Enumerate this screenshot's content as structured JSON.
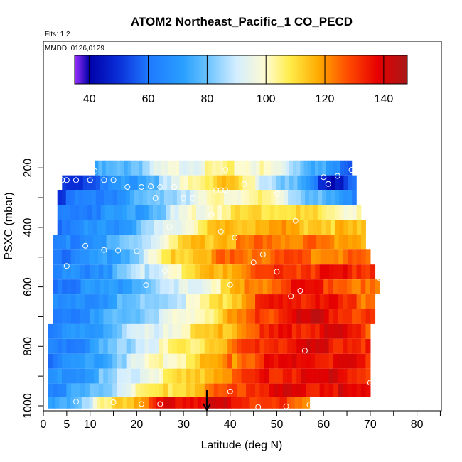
{
  "chart_data": {
    "type": "heatmap",
    "title": "ATOM2 Northeast_Pacific_1 CO_PECD",
    "flights_text": "Flts: 1,2",
    "dates_text": "MMDD: 0126,0129",
    "xlabel": "Latitude (deg N)",
    "ylabel": "PSXC (mbar)",
    "xlim": [
      0,
      86
    ],
    "ylim": [
      1000,
      0
    ],
    "x_ticks": [
      0,
      5,
      10,
      20,
      30,
      40,
      50,
      60,
      70,
      80
    ],
    "x_minor_ticks": [
      15,
      25,
      35,
      45,
      55,
      65,
      75,
      85
    ],
    "y_ticks": [
      200,
      400,
      600,
      800,
      1000
    ],
    "y_minor_ticks": [
      300,
      500,
      700,
      900
    ],
    "colorbar": {
      "range": [
        35,
        148
      ],
      "ticks": [
        40,
        60,
        80,
        100,
        120,
        140
      ],
      "colors": [
        {
          "v": 35,
          "c": "#9b30ff"
        },
        {
          "v": 40,
          "c": "#0000a8"
        },
        {
          "v": 50,
          "c": "#0a2fd9"
        },
        {
          "v": 60,
          "c": "#1e78ff"
        },
        {
          "v": 72,
          "c": "#2aa0ff"
        },
        {
          "v": 80,
          "c": "#69c2ff"
        },
        {
          "v": 90,
          "c": "#d4eeff"
        },
        {
          "v": 100,
          "c": "#fffbd0"
        },
        {
          "v": 108,
          "c": "#ffec4a"
        },
        {
          "v": 118,
          "c": "#ffaa00"
        },
        {
          "v": 128,
          "c": "#ff4a00"
        },
        {
          "v": 138,
          "c": "#e60000"
        },
        {
          "v": 148,
          "c": "#a81818"
        }
      ]
    },
    "layers": [
      {
        "p": 200,
        "lat": [
          11,
          66
        ],
        "vals": [
          72,
          76,
          84,
          93,
          97,
          100,
          102,
          100,
          94,
          82,
          70,
          58
        ]
      },
      {
        "p": 250,
        "lat": [
          4,
          67
        ],
        "vals": [
          50,
          55,
          66,
          74,
          86,
          106,
          116,
          100,
          86,
          72,
          44,
          58
        ]
      },
      {
        "p": 300,
        "lat": [
          3,
          67
        ],
        "vals": [
          55,
          60,
          66,
          74,
          85,
          94,
          100,
          104,
          98,
          84,
          72,
          62
        ]
      },
      {
        "p": 350,
        "lat": [
          3,
          68
        ],
        "vals": [
          60,
          64,
          68,
          74,
          86,
          98,
          106,
          110,
          112,
          108,
          104,
          98
        ]
      },
      {
        "p": 400,
        "lat": [
          3,
          69
        ],
        "vals": [
          62,
          65,
          70,
          78,
          92,
          106,
          114,
          118,
          118,
          116,
          114,
          110
        ]
      },
      {
        "p": 450,
        "lat": [
          2,
          69
        ],
        "vals": [
          62,
          66,
          72,
          84,
          100,
          112,
          118,
          122,
          124,
          124,
          122,
          118
        ]
      },
      {
        "p": 500,
        "lat": [
          2,
          70
        ],
        "vals": [
          62,
          66,
          70,
          84,
          108,
          118,
          122,
          126,
          126,
          124,
          124,
          122
        ]
      },
      {
        "p": 550,
        "lat": [
          2,
          71
        ],
        "vals": [
          62,
          66,
          72,
          86,
          100,
          112,
          120,
          128,
          132,
          134,
          134,
          134
        ]
      },
      {
        "p": 600,
        "lat": [
          2,
          72
        ],
        "vals": [
          62,
          66,
          70,
          78,
          86,
          96,
          112,
          124,
          132,
          134,
          126,
          118
        ]
      },
      {
        "p": 650,
        "lat": [
          2,
          71
        ],
        "vals": [
          62,
          66,
          72,
          80,
          88,
          98,
          112,
          128,
          134,
          138,
          130,
          124
        ]
      },
      {
        "p": 700,
        "lat": [
          2,
          71
        ],
        "vals": [
          62,
          66,
          74,
          84,
          92,
          102,
          114,
          128,
          136,
          140,
          134,
          126
        ]
      },
      {
        "p": 750,
        "lat": [
          1,
          70
        ],
        "vals": [
          62,
          66,
          76,
          88,
          98,
          106,
          114,
          126,
          134,
          138,
          136,
          130
        ]
      },
      {
        "p": 800,
        "lat": [
          1,
          70
        ],
        "vals": [
          62,
          66,
          76,
          90,
          100,
          108,
          118,
          130,
          136,
          138,
          136,
          132
        ]
      },
      {
        "p": 850,
        "lat": [
          1,
          70
        ],
        "vals": [
          62,
          68,
          78,
          92,
          102,
          110,
          120,
          130,
          136,
          138,
          136,
          134
        ]
      },
      {
        "p": 900,
        "lat": [
          1,
          70
        ],
        "vals": [
          64,
          70,
          80,
          94,
          104,
          112,
          122,
          132,
          136,
          138,
          138,
          134
        ]
      },
      {
        "p": 950,
        "lat": [
          1,
          70
        ],
        "vals": [
          66,
          72,
          84,
          100,
          108,
          116,
          126,
          134,
          138,
          138,
          138,
          134
        ]
      },
      {
        "p": 990,
        "lat": [
          1,
          57
        ],
        "vals": [
          66,
          78,
          96,
          110,
          124,
          136,
          140,
          140,
          138,
          130,
          128,
          126
        ]
      }
    ],
    "obs_points": [
      [
        11,
        211
      ],
      [
        39,
        207
      ],
      [
        66,
        207
      ],
      [
        4,
        241
      ],
      [
        5,
        241
      ],
      [
        7,
        241
      ],
      [
        10,
        241
      ],
      [
        13,
        241
      ],
      [
        15,
        241
      ],
      [
        60,
        231
      ],
      [
        61,
        254
      ],
      [
        63,
        227
      ],
      [
        18,
        264
      ],
      [
        21,
        264
      ],
      [
        23,
        262
      ],
      [
        25,
        264
      ],
      [
        28,
        264
      ],
      [
        43,
        254
      ],
      [
        24,
        302
      ],
      [
        30,
        302
      ],
      [
        32,
        302
      ],
      [
        37,
        275
      ],
      [
        38,
        275
      ],
      [
        39,
        275
      ],
      [
        50,
        287
      ],
      [
        36,
        357
      ],
      [
        54,
        378
      ],
      [
        38,
        414
      ],
      [
        41,
        434
      ],
      [
        27,
        399
      ],
      [
        9,
        462
      ],
      [
        13,
        476
      ],
      [
        16,
        478
      ],
      [
        20,
        480
      ],
      [
        1,
        482
      ],
      [
        1,
        488
      ],
      [
        47,
        491
      ],
      [
        45,
        518
      ],
      [
        71,
        502
      ],
      [
        5,
        530
      ],
      [
        26,
        546
      ],
      [
        50,
        549
      ],
      [
        72,
        570
      ],
      [
        22,
        594
      ],
      [
        40,
        593
      ],
      [
        55,
        613
      ],
      [
        53,
        631
      ],
      [
        56,
        814
      ],
      [
        70,
        922
      ],
      [
        40,
        952
      ],
      [
        0,
        988
      ],
      [
        7,
        986
      ],
      [
        15,
        988
      ],
      [
        21,
        994
      ],
      [
        25,
        994
      ],
      [
        46,
        1004
      ],
      [
        52,
        1002
      ],
      [
        57,
        996
      ]
    ],
    "marker": {
      "lat": 35,
      "p": 1000
    }
  }
}
